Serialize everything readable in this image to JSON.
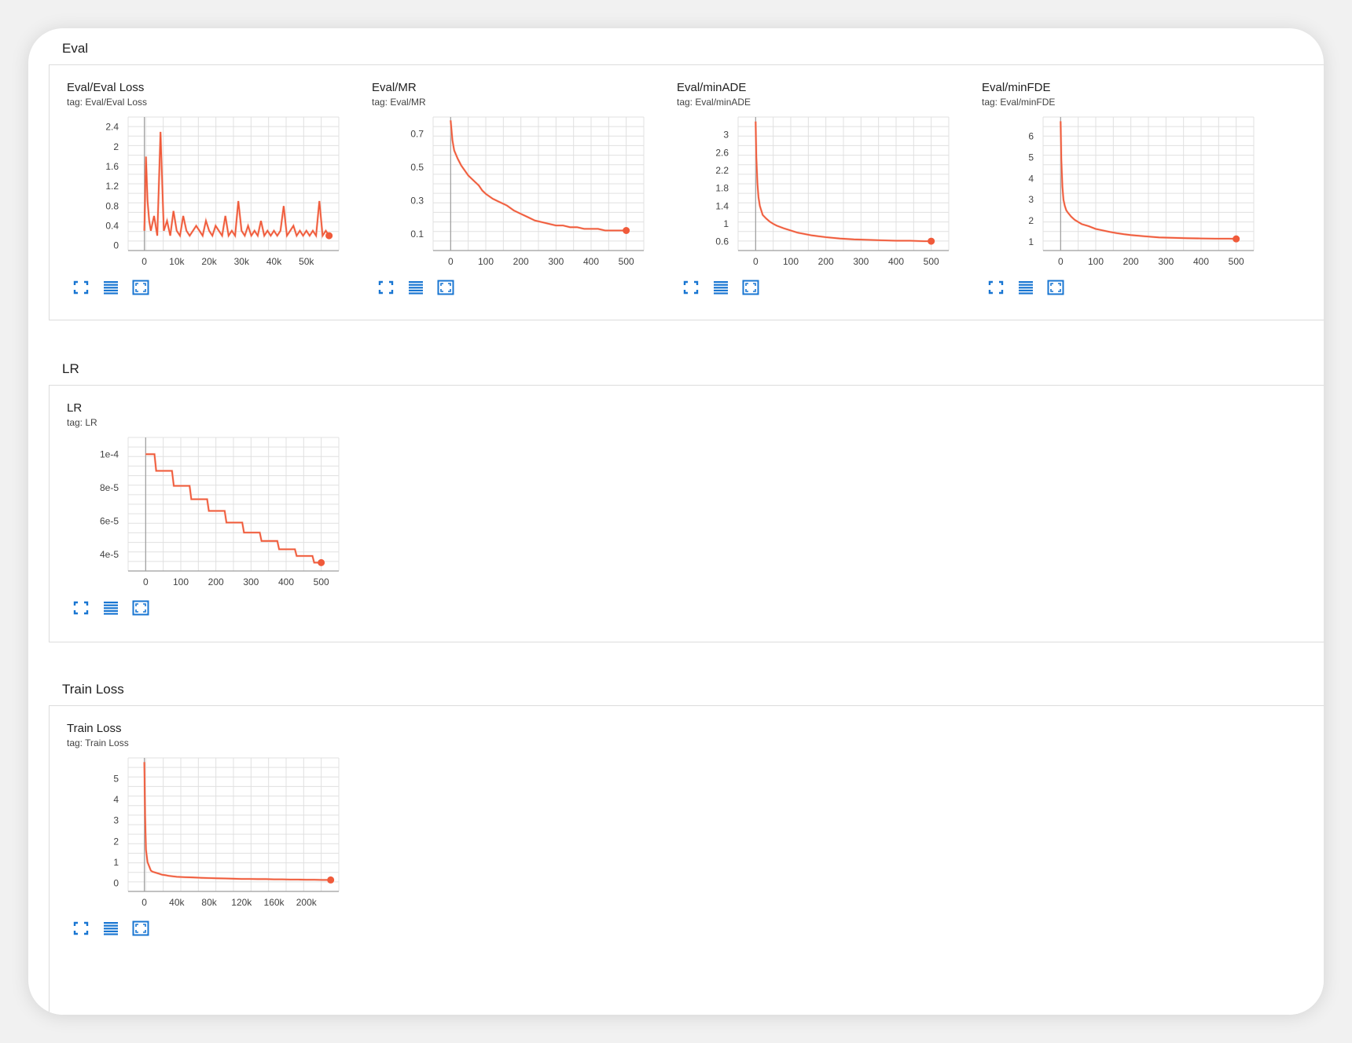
{
  "sections": {
    "eval": {
      "title": "Eval"
    },
    "lr": {
      "title": "LR"
    },
    "train": {
      "title": "Train Loss"
    }
  },
  "colors": {
    "line": "#f05a3a",
    "line_raw": "#f7b9a8",
    "grid": "#e0e0e0",
    "axis": "#9e9e9e",
    "icon": "#1976d2"
  },
  "icons": [
    "fit-to-screen-icon",
    "data-table-icon",
    "fit-domain-icon"
  ],
  "charts": [
    {
      "title": "Eval/Eval Loss",
      "tag": "tag: Eval/Eval Loss",
      "chart_data": {
        "type": "line",
        "x_ticks": [
          "0",
          "10k",
          "20k",
          "30k",
          "40k",
          "50k"
        ],
        "x_tick_values": [
          0,
          10000,
          20000,
          30000,
          40000,
          50000
        ],
        "y_ticks": [
          "0",
          "0.4",
          "0.8",
          "1.2",
          "1.6",
          "2",
          "2.4"
        ],
        "y_tick_values": [
          0,
          0.4,
          0.8,
          1.2,
          1.6,
          2,
          2.4
        ],
        "xlim": [
          -5000,
          60000
        ],
        "ylim": [
          -0.1,
          2.6
        ],
        "x": [
          0,
          500,
          1000,
          1500,
          2000,
          3000,
          4000,
          5000,
          6000,
          7000,
          8000,
          9000,
          10000,
          11000,
          12000,
          13000,
          14000,
          15000,
          16000,
          17000,
          18000,
          19000,
          20000,
          21000,
          22000,
          23000,
          24000,
          25000,
          26000,
          27000,
          28000,
          29000,
          30000,
          31000,
          32000,
          33000,
          34000,
          35000,
          36000,
          37000,
          38000,
          39000,
          40000,
          41000,
          42000,
          43000,
          44000,
          45000,
          46000,
          47000,
          48000,
          49000,
          50000,
          51000,
          52000,
          53000,
          54000,
          55000,
          56000,
          57000
        ],
        "y": [
          0.3,
          1.8,
          0.9,
          0.5,
          0.3,
          0.6,
          0.2,
          2.3,
          0.3,
          0.5,
          0.2,
          0.7,
          0.3,
          0.2,
          0.6,
          0.3,
          0.2,
          0.3,
          0.4,
          0.3,
          0.2,
          0.5,
          0.3,
          0.2,
          0.4,
          0.3,
          0.2,
          0.6,
          0.2,
          0.3,
          0.2,
          0.9,
          0.3,
          0.2,
          0.4,
          0.2,
          0.3,
          0.2,
          0.5,
          0.2,
          0.3,
          0.2,
          0.3,
          0.2,
          0.3,
          0.8,
          0.2,
          0.3,
          0.4,
          0.2,
          0.3,
          0.2,
          0.3,
          0.2,
          0.3,
          0.2,
          0.9,
          0.2,
          0.3,
          0.2
        ]
      }
    },
    {
      "title": "Eval/MR",
      "tag": "tag: Eval/MR",
      "chart_data": {
        "type": "line",
        "x_ticks": [
          "0",
          "100",
          "200",
          "300",
          "400",
          "500"
        ],
        "x_tick_values": [
          0,
          100,
          200,
          300,
          400,
          500
        ],
        "y_ticks": [
          "0.1",
          "0.3",
          "0.5",
          "0.7"
        ],
        "y_tick_values": [
          0.1,
          0.3,
          0.5,
          0.7
        ],
        "xlim": [
          -50,
          550
        ],
        "ylim": [
          0.0,
          0.8
        ],
        "x": [
          0,
          5,
          10,
          20,
          30,
          40,
          50,
          60,
          70,
          80,
          90,
          100,
          120,
          140,
          160,
          180,
          200,
          220,
          240,
          260,
          280,
          300,
          320,
          340,
          360,
          380,
          400,
          420,
          440,
          460,
          480,
          500
        ],
        "y": [
          0.78,
          0.66,
          0.6,
          0.55,
          0.51,
          0.48,
          0.45,
          0.43,
          0.41,
          0.39,
          0.36,
          0.34,
          0.31,
          0.29,
          0.27,
          0.24,
          0.22,
          0.2,
          0.18,
          0.17,
          0.16,
          0.15,
          0.15,
          0.14,
          0.14,
          0.13,
          0.13,
          0.13,
          0.12,
          0.12,
          0.12,
          0.12
        ]
      }
    },
    {
      "title": "Eval/minADE",
      "tag": "tag: Eval/minADE",
      "chart_data": {
        "type": "line",
        "x_ticks": [
          "0",
          "100",
          "200",
          "300",
          "400",
          "500"
        ],
        "x_tick_values": [
          0,
          100,
          200,
          300,
          400,
          500
        ],
        "y_ticks": [
          "0.6",
          "1",
          "1.4",
          "1.8",
          "2.2",
          "2.6",
          "3"
        ],
        "y_tick_values": [
          0.6,
          1,
          1.4,
          1.8,
          2.2,
          2.6,
          3
        ],
        "xlim": [
          -50,
          550
        ],
        "ylim": [
          0.4,
          3.4
        ],
        "x": [
          0,
          2,
          5,
          8,
          12,
          16,
          20,
          30,
          40,
          50,
          60,
          80,
          100,
          120,
          140,
          160,
          180,
          200,
          240,
          280,
          320,
          360,
          400,
          440,
          480,
          500
        ],
        "y": [
          3.3,
          2.5,
          1.9,
          1.6,
          1.4,
          1.3,
          1.2,
          1.12,
          1.05,
          1.0,
          0.96,
          0.9,
          0.85,
          0.8,
          0.77,
          0.74,
          0.72,
          0.7,
          0.67,
          0.65,
          0.64,
          0.63,
          0.62,
          0.62,
          0.61,
          0.61
        ]
      }
    },
    {
      "title": "Eval/minFDE",
      "tag": "tag: Eval/minFDE",
      "chart_data": {
        "type": "line",
        "x_ticks": [
          "0",
          "100",
          "200",
          "300",
          "400",
          "500"
        ],
        "x_tick_values": [
          0,
          100,
          200,
          300,
          400,
          500
        ],
        "y_ticks": [
          "1",
          "2",
          "3",
          "4",
          "5",
          "6"
        ],
        "y_tick_values": [
          1,
          2,
          3,
          4,
          5,
          6
        ],
        "xlim": [
          -50,
          550
        ],
        "ylim": [
          0.6,
          6.9
        ],
        "x": [
          0,
          2,
          5,
          8,
          12,
          16,
          20,
          30,
          40,
          50,
          60,
          80,
          100,
          120,
          140,
          160,
          180,
          200,
          240,
          280,
          320,
          360,
          400,
          440,
          480,
          500
        ],
        "y": [
          6.7,
          4.9,
          3.6,
          3.0,
          2.7,
          2.5,
          2.4,
          2.2,
          2.05,
          1.95,
          1.85,
          1.75,
          1.62,
          1.55,
          1.48,
          1.42,
          1.37,
          1.33,
          1.27,
          1.22,
          1.2,
          1.18,
          1.17,
          1.16,
          1.16,
          1.15
        ]
      }
    },
    {
      "title": "LR",
      "tag": "tag: LR",
      "chart_data": {
        "type": "line",
        "x_ticks": [
          "0",
          "100",
          "200",
          "300",
          "400",
          "500"
        ],
        "x_tick_values": [
          0,
          100,
          200,
          300,
          400,
          500
        ],
        "y_ticks": [
          "4e-5",
          "6e-5",
          "8e-5",
          "1e-4"
        ],
        "y_tick_values": [
          4e-05,
          6e-05,
          8e-05,
          0.0001
        ],
        "xlim": [
          -50,
          550
        ],
        "ylim": [
          3e-05,
          0.00011
        ],
        "x": [
          0,
          5,
          25,
          30,
          50,
          55,
          75,
          80,
          100,
          105,
          125,
          130,
          150,
          155,
          175,
          180,
          200,
          205,
          225,
          230,
          250,
          255,
          275,
          280,
          300,
          305,
          325,
          330,
          350,
          355,
          375,
          380,
          400,
          405,
          425,
          430,
          450,
          455,
          475,
          480,
          500
        ],
        "y": [
          0.0001,
          0.0001,
          0.0001,
          9e-05,
          9e-05,
          9e-05,
          9e-05,
          8.1e-05,
          8.1e-05,
          8.1e-05,
          8.1e-05,
          7.3e-05,
          7.3e-05,
          7.3e-05,
          7.3e-05,
          6.6e-05,
          6.6e-05,
          6.6e-05,
          6.6e-05,
          5.9e-05,
          5.9e-05,
          5.9e-05,
          5.9e-05,
          5.3e-05,
          5.3e-05,
          5.3e-05,
          5.3e-05,
          4.8e-05,
          4.8e-05,
          4.8e-05,
          4.8e-05,
          4.3e-05,
          4.3e-05,
          4.3e-05,
          4.3e-05,
          3.9e-05,
          3.9e-05,
          3.9e-05,
          3.9e-05,
          3.5e-05,
          3.5e-05
        ]
      }
    },
    {
      "title": "Train Loss",
      "tag": "tag: Train Loss",
      "chart_data": {
        "type": "line",
        "x_ticks": [
          "0",
          "40k",
          "80k",
          "120k",
          "160k",
          "200k"
        ],
        "x_tick_values": [
          0,
          40000,
          80000,
          120000,
          160000,
          200000
        ],
        "y_ticks": [
          "0",
          "1",
          "2",
          "3",
          "4",
          "5"
        ],
        "y_tick_values": [
          0,
          1,
          2,
          3,
          4,
          5
        ],
        "xlim": [
          -20000,
          240000
        ],
        "ylim": [
          -0.4,
          6.0
        ],
        "x": [
          0,
          1000,
          2000,
          4000,
          6000,
          8000,
          10000,
          14000,
          18000,
          22000,
          26000,
          30000,
          40000,
          50000,
          60000,
          70000,
          80000,
          90000,
          100000,
          110000,
          120000,
          130000,
          140000,
          150000,
          160000,
          170000,
          180000,
          190000,
          200000,
          210000,
          220000,
          230000
        ],
        "y": [
          5.8,
          3.2,
          1.6,
          1.0,
          0.8,
          0.6,
          0.55,
          0.5,
          0.45,
          0.4,
          0.38,
          0.35,
          0.3,
          0.28,
          0.27,
          0.25,
          0.24,
          0.23,
          0.22,
          0.21,
          0.2,
          0.2,
          0.19,
          0.19,
          0.18,
          0.18,
          0.17,
          0.17,
          0.16,
          0.16,
          0.15,
          0.15
        ]
      }
    }
  ]
}
